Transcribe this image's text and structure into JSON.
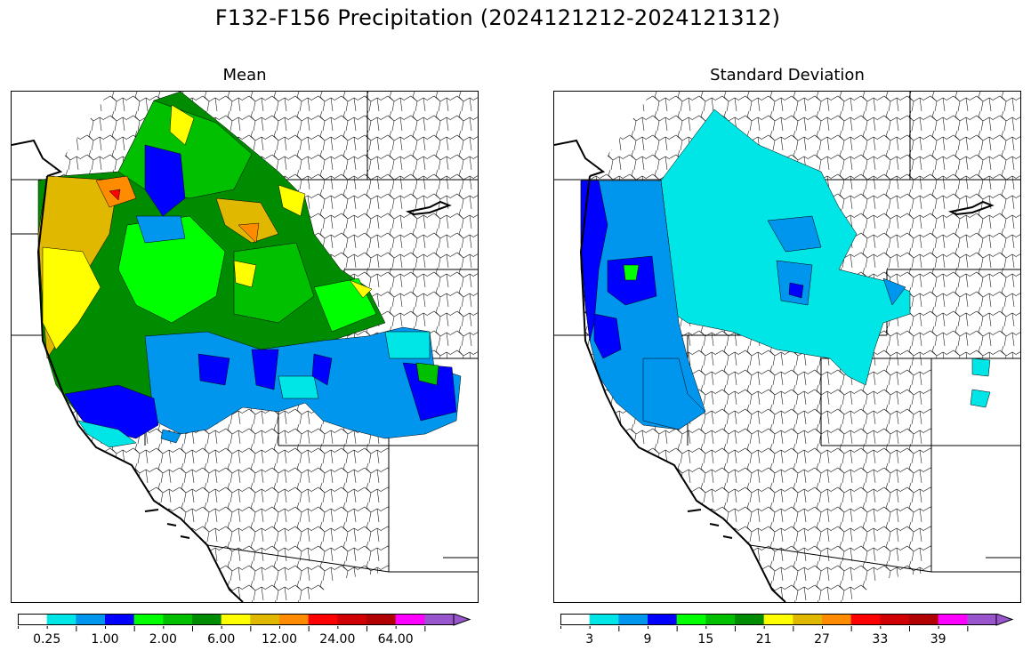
{
  "figure": {
    "title": "F132-F156 Precipitation (2024121212-2024121312)"
  },
  "panels": [
    {
      "title": "Mean",
      "colorbar": {
        "colors": [
          "#ffffff",
          "#00e5e5",
          "#0096ee",
          "#0000ff",
          "#00ff00",
          "#00c000",
          "#008c00",
          "#ffff00",
          "#e0b800",
          "#ff8c00",
          "#ff0000",
          "#d00000",
          "#b00000",
          "#ff00ff",
          "#9955cc"
        ],
        "labels": [
          "0.25",
          "1.00",
          "2.00",
          "6.00",
          "12.00",
          "24.00",
          "64.00"
        ],
        "extend": "max"
      }
    },
    {
      "title": "Standard Deviation",
      "colorbar": {
        "colors": [
          "#ffffff",
          "#00e5e5",
          "#0096ee",
          "#0000ff",
          "#00ff00",
          "#00c000",
          "#008c00",
          "#ffff00",
          "#e0b800",
          "#ff8c00",
          "#ff0000",
          "#d00000",
          "#b00000",
          "#ff00ff",
          "#9955cc"
        ],
        "labels": [
          "3",
          "9",
          "15",
          "21",
          "27",
          "33",
          "39"
        ],
        "extend": "max"
      }
    }
  ]
}
